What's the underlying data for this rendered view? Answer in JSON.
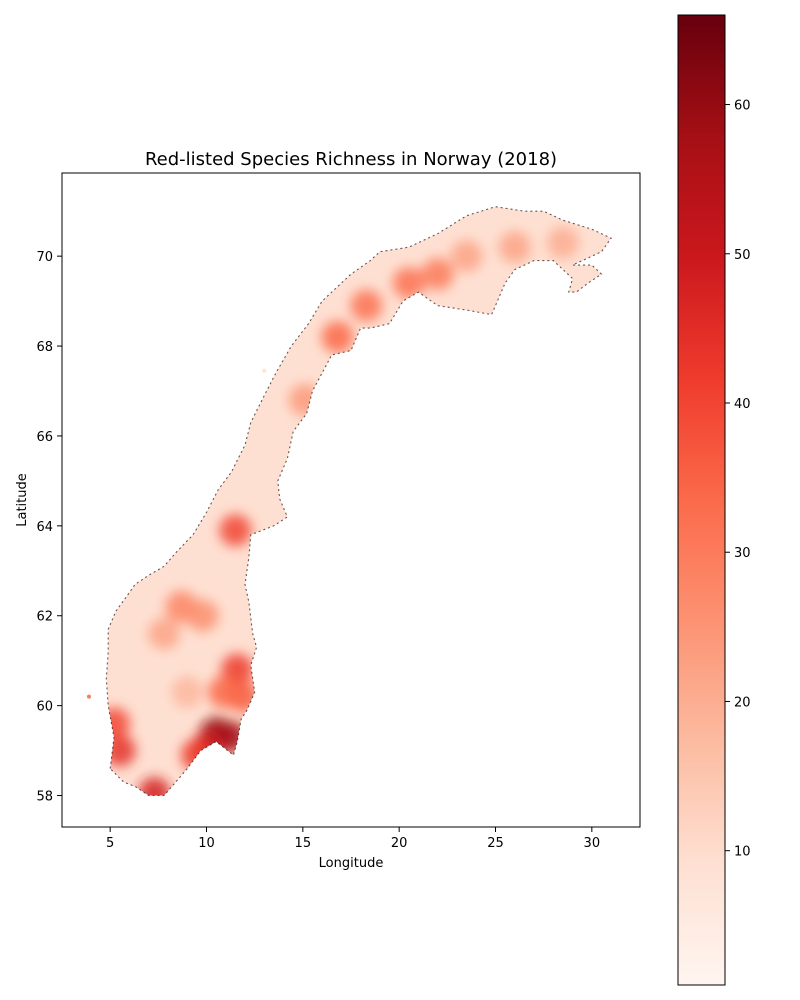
{
  "chart_data": {
    "type": "heatmap",
    "title": "Red-listed Species Richness in Norway (2018)",
    "xlabel": "Longitude",
    "ylabel": "Latitude",
    "xlim": [
      2.5,
      32.5
    ],
    "ylim": [
      57.3,
      71.85
    ],
    "xticks": [
      5,
      10,
      15,
      20,
      25,
      30
    ],
    "yticks": [
      58,
      60,
      62,
      64,
      66,
      68,
      70
    ],
    "grid": false,
    "colorbar": {
      "colormap": "Reds",
      "range": [
        1,
        66
      ],
      "ticks": [
        10,
        20,
        30,
        40,
        50,
        60
      ],
      "placement": "right"
    },
    "outline": [
      [
        5.0,
        58.6
      ],
      [
        5.2,
        59.3
      ],
      [
        4.9,
        60.0
      ],
      [
        4.8,
        60.6
      ],
      [
        4.9,
        61.2
      ],
      [
        4.9,
        61.7
      ],
      [
        5.3,
        62.1
      ],
      [
        5.8,
        62.4
      ],
      [
        6.3,
        62.7
      ],
      [
        7.0,
        62.9
      ],
      [
        7.8,
        63.1
      ],
      [
        8.4,
        63.4
      ],
      [
        9.3,
        63.8
      ],
      [
        10.0,
        64.3
      ],
      [
        10.6,
        64.8
      ],
      [
        11.3,
        65.2
      ],
      [
        12.0,
        65.8
      ],
      [
        12.3,
        66.3
      ],
      [
        13.0,
        66.9
      ],
      [
        13.6,
        67.4
      ],
      [
        14.4,
        68.0
      ],
      [
        15.3,
        68.5
      ],
      [
        16.0,
        69.0
      ],
      [
        17.5,
        69.6
      ],
      [
        18.5,
        69.9
      ],
      [
        19.0,
        70.1
      ],
      [
        20.5,
        70.2
      ],
      [
        22.0,
        70.5
      ],
      [
        23.5,
        70.9
      ],
      [
        25.0,
        71.1
      ],
      [
        26.5,
        71.0
      ],
      [
        27.5,
        71.0
      ],
      [
        28.5,
        70.8
      ],
      [
        30.0,
        70.6
      ],
      [
        31.0,
        70.4
      ],
      [
        30.5,
        70.1
      ],
      [
        29.0,
        69.8
      ],
      [
        30.0,
        69.8
      ],
      [
        30.5,
        69.6
      ],
      [
        29.8,
        69.4
      ],
      [
        29.2,
        69.2
      ],
      [
        28.8,
        69.2
      ],
      [
        29.0,
        69.5
      ],
      [
        28.0,
        69.9
      ],
      [
        27.0,
        69.9
      ],
      [
        26.0,
        69.7
      ],
      [
        25.5,
        69.4
      ],
      [
        25.0,
        68.9
      ],
      [
        24.8,
        68.7
      ],
      [
        23.5,
        68.8
      ],
      [
        22.0,
        68.9
      ],
      [
        21.0,
        69.2
      ],
      [
        20.2,
        69.0
      ],
      [
        19.5,
        68.5
      ],
      [
        18.5,
        68.4
      ],
      [
        18.0,
        68.4
      ],
      [
        17.5,
        67.9
      ],
      [
        16.5,
        67.8
      ],
      [
        16.0,
        67.4
      ],
      [
        15.5,
        67.0
      ],
      [
        15.2,
        66.5
      ],
      [
        14.5,
        66.1
      ],
      [
        14.2,
        65.5
      ],
      [
        13.7,
        65.0
      ],
      [
        13.8,
        64.6
      ],
      [
        14.2,
        64.2
      ],
      [
        13.5,
        64.0
      ],
      [
        12.3,
        63.8
      ],
      [
        12.2,
        63.3
      ],
      [
        12.0,
        62.7
      ],
      [
        12.2,
        62.3
      ],
      [
        12.4,
        61.6
      ],
      [
        12.6,
        61.3
      ],
      [
        12.3,
        60.9
      ],
      [
        12.5,
        60.3
      ],
      [
        12.1,
        59.9
      ],
      [
        11.8,
        59.7
      ],
      [
        11.6,
        59.2
      ],
      [
        11.4,
        58.9
      ],
      [
        10.8,
        59.1
      ],
      [
        10.5,
        59.2
      ],
      [
        9.7,
        59.0
      ],
      [
        9.0,
        58.6
      ],
      [
        8.4,
        58.3
      ],
      [
        7.8,
        58.0
      ],
      [
        7.0,
        58.0
      ],
      [
        6.3,
        58.2
      ],
      [
        5.7,
        58.3
      ]
    ],
    "hotspots": [
      {
        "lon": 10.5,
        "lat": 59.4,
        "value": 60
      },
      {
        "lon": 11.3,
        "lat": 59.3,
        "value": 58
      },
      {
        "lon": 10.1,
        "lat": 59.1,
        "value": 50
      },
      {
        "lon": 9.5,
        "lat": 58.9,
        "value": 42
      },
      {
        "lon": 7.3,
        "lat": 58.05,
        "value": 48
      },
      {
        "lon": 5.5,
        "lat": 59.0,
        "value": 44
      },
      {
        "lon": 5.2,
        "lat": 59.6,
        "value": 40
      },
      {
        "lon": 11.6,
        "lat": 60.8,
        "value": 42
      },
      {
        "lon": 11.9,
        "lat": 60.2,
        "value": 36
      },
      {
        "lon": 10.9,
        "lat": 60.3,
        "value": 34
      },
      {
        "lon": 8.7,
        "lat": 62.2,
        "value": 28
      },
      {
        "lon": 9.8,
        "lat": 62.0,
        "value": 26
      },
      {
        "lon": 7.8,
        "lat": 61.6,
        "value": 22
      },
      {
        "lon": 11.5,
        "lat": 63.9,
        "value": 40
      },
      {
        "lon": 16.8,
        "lat": 68.2,
        "value": 34
      },
      {
        "lon": 18.3,
        "lat": 68.9,
        "value": 32
      },
      {
        "lon": 20.5,
        "lat": 69.4,
        "value": 32
      },
      {
        "lon": 22.0,
        "lat": 69.6,
        "value": 30
      },
      {
        "lon": 23.5,
        "lat": 70.0,
        "value": 22
      },
      {
        "lon": 26.0,
        "lat": 70.2,
        "value": 22
      },
      {
        "lon": 28.5,
        "lat": 70.3,
        "value": 20
      },
      {
        "lon": 15.1,
        "lat": 66.8,
        "value": 24
      },
      {
        "lon": 9.0,
        "lat": 60.3,
        "value": 18
      }
    ],
    "islands": [
      {
        "lon": 3.9,
        "lat": 60.2,
        "value": 30
      },
      {
        "lon": 13.0,
        "lat": 67.45,
        "value": 8
      }
    ]
  }
}
